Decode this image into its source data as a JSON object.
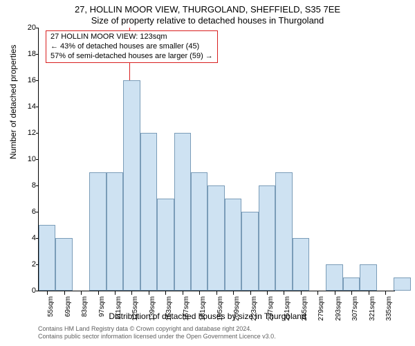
{
  "title_line1": "27, HOLLIN MOOR VIEW, THURGOLAND, SHEFFIELD, S35 7EE",
  "title_line2": "Size of property relative to detached houses in Thurgoland",
  "y_axis": {
    "label": "Number of detached properties",
    "min": 0,
    "max": 20,
    "tick_step": 2
  },
  "x_axis": {
    "label": "Distribution of detached houses by size in Thurgoland",
    "min": 48,
    "max": 343,
    "bin_width": 14,
    "tick_start": 55,
    "tick_step": 14,
    "tick_count": 21
  },
  "bars": {
    "values": [
      5,
      4,
      0,
      9,
      9,
      16,
      12,
      7,
      12,
      9,
      8,
      7,
      6,
      8,
      9,
      4,
      0,
      2,
      1,
      2,
      0,
      1
    ]
  },
  "marker": {
    "value": 123,
    "annot_lines": [
      "27 HOLLIN MOOR VIEW: 123sqm",
      "← 43% of detached houses are smaller (45)",
      "57% of semi-detached houses are larger (59) →"
    ]
  },
  "style": {
    "bar_fill": "#cee2f2",
    "bar_stroke": "#7a9cb8",
    "marker_color": "#d81e1e",
    "bg": "#ffffff",
    "fontsize_title": 13,
    "fontsize_axis_label": 12,
    "fontsize_tick": 11,
    "fontsize_annot": 11
  },
  "footer": {
    "line1": "Contains HM Land Registry data © Crown copyright and database right 2024.",
    "line2": "Contains public sector information licensed under the Open Government Licence v3.0."
  }
}
